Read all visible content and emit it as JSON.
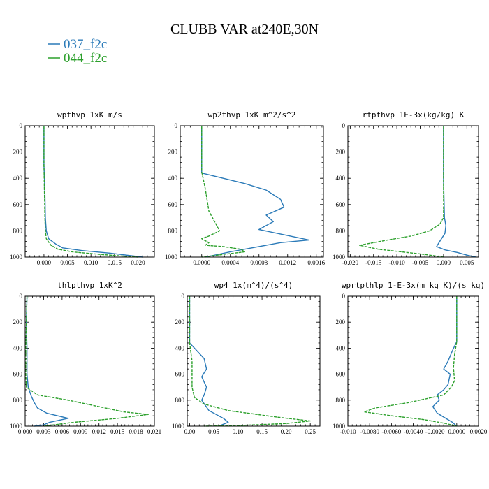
{
  "figure": {
    "title": "CLUBB VAR at240E,30N",
    "legend": [
      {
        "label": "037_f2c",
        "color": "#2a7ab8",
        "dash": "solid"
      },
      {
        "label": "044_f2c",
        "color": "#2ca02c",
        "dash": "dashed"
      }
    ]
  },
  "chart_data": [
    {
      "type": "line",
      "title": "wpthvp  1xK m/s",
      "xlim": [
        -0.004,
        0.0235
      ],
      "ylim": [
        1000,
        0
      ],
      "xticks": [
        0.0,
        0.005,
        0.01,
        0.015,
        0.02
      ],
      "xtick_labels": [
        "0.000",
        "0.005",
        "0.010",
        "0.015",
        "0.020"
      ],
      "yticks": [
        0,
        200,
        400,
        600,
        800,
        1000
      ],
      "ytick_labels": [
        "0",
        "200",
        "400",
        "600",
        "800",
        "1000"
      ],
      "series": [
        {
          "name": "037_f2c",
          "color": "#2a7ab8",
          "dash": "solid",
          "points": [
            [
              0.0,
              0
            ],
            [
              0.0,
              300
            ],
            [
              0.0002,
              500
            ],
            [
              0.0003,
              700
            ],
            [
              0.0005,
              800
            ],
            [
              0.001,
              860
            ],
            [
              0.0025,
              900
            ],
            [
              0.004,
              930
            ],
            [
              0.008,
              950
            ],
            [
              0.014,
              970
            ],
            [
              0.021,
              1000
            ]
          ]
        },
        {
          "name": "044_f2c",
          "color": "#2ca02c",
          "dash": "dashed",
          "points": [
            [
              0.0,
              0
            ],
            [
              0.0,
              300
            ],
            [
              0.0001,
              500
            ],
            [
              0.0002,
              700
            ],
            [
              0.0003,
              800
            ],
            [
              0.0005,
              860
            ],
            [
              0.0015,
              910
            ],
            [
              0.003,
              940
            ],
            [
              0.006,
              960
            ],
            [
              0.012,
              980
            ],
            [
              0.02,
              1000
            ]
          ]
        }
      ]
    },
    {
      "type": "line",
      "title": "wp2thvp  1xK m^2/s^2",
      "xlim": [
        -0.0003,
        0.0017
      ],
      "ylim": [
        1000,
        0
      ],
      "xticks": [
        0.0,
        0.0004,
        0.0008,
        0.0012,
        0.0016
      ],
      "xtick_labels": [
        "0.0000",
        "0.0004",
        "0.0008",
        "0.0012",
        "0.0016"
      ],
      "yticks": [
        0,
        200,
        400,
        600,
        800,
        1000
      ],
      "ytick_labels": [
        "0",
        "200",
        "400",
        "600",
        "800",
        "1000"
      ],
      "series": [
        {
          "name": "037_f2c",
          "color": "#2a7ab8",
          "dash": "solid",
          "points": [
            [
              0.0,
              0
            ],
            [
              0.0,
              360
            ],
            [
              0.0003,
              400
            ],
            [
              0.0006,
              440
            ],
            [
              0.0009,
              490
            ],
            [
              0.0011,
              560
            ],
            [
              0.00115,
              620
            ],
            [
              0.0009,
              680
            ],
            [
              0.001,
              730
            ],
            [
              0.0008,
              790
            ],
            [
              0.00115,
              830
            ],
            [
              0.0015,
              870
            ],
            [
              0.0011,
              890
            ],
            [
              0.0008,
              920
            ],
            [
              0.0004,
              960
            ],
            [
              5e-05,
              1000
            ]
          ]
        },
        {
          "name": "044_f2c",
          "color": "#2ca02c",
          "dash": "dashed",
          "points": [
            [
              0.0,
              0
            ],
            [
              0.0,
              350
            ],
            [
              5e-05,
              480
            ],
            [
              0.0001,
              650
            ],
            [
              0.00025,
              800
            ],
            [
              0.0001,
              840
            ],
            [
              0.0,
              860
            ],
            [
              0.0001,
              890
            ],
            [
              5e-05,
              910
            ],
            [
              0.0003,
              920
            ],
            [
              0.00055,
              940
            ],
            [
              0.0006,
              960
            ],
            [
              0.0003,
              980
            ],
            [
              0.0,
              1000
            ]
          ]
        }
      ]
    },
    {
      "type": "line",
      "title": "rtpthvp  1E-3x(kg/kg) K",
      "xlim": [
        -0.0205,
        0.0075
      ],
      "ylim": [
        1000,
        0
      ],
      "xticks": [
        -0.02,
        -0.015,
        -0.01,
        -0.005,
        0.0,
        0.005
      ],
      "xtick_labels": [
        "-0.020",
        "-0.015",
        "-0.010",
        "-0.005",
        "0.000",
        "0.005"
      ],
      "yticks": [
        0,
        200,
        400,
        600,
        800,
        1000
      ],
      "ytick_labels": [
        "0",
        "200",
        "400",
        "600",
        "800",
        "1000"
      ],
      "series": [
        {
          "name": "037_f2c",
          "color": "#2a7ab8",
          "dash": "solid",
          "points": [
            [
              0.0,
              0
            ],
            [
              0.0,
              400
            ],
            [
              0.0002,
              700
            ],
            [
              0.0005,
              760
            ],
            [
              0.0003,
              820
            ],
            [
              -0.0008,
              880
            ],
            [
              -0.0015,
              920
            ],
            [
              0.0003,
              945
            ],
            [
              0.003,
              965
            ],
            [
              0.005,
              985
            ],
            [
              0.007,
              1000
            ]
          ]
        },
        {
          "name": "044_f2c",
          "color": "#2ca02c",
          "dash": "dashed",
          "points": [
            [
              0.0,
              0
            ],
            [
              0.0,
              700
            ],
            [
              -0.0008,
              750
            ],
            [
              -0.003,
              800
            ],
            [
              -0.007,
              840
            ],
            [
              -0.012,
              870
            ],
            [
              -0.018,
              910
            ],
            [
              -0.014,
              940
            ],
            [
              -0.009,
              960
            ],
            [
              -0.004,
              980
            ],
            [
              0.0,
              1000
            ]
          ]
        }
      ]
    },
    {
      "type": "line",
      "title": "thlpthvp  1xK^2",
      "xlim": [
        0.0,
        0.021
      ],
      "ylim": [
        1000,
        0
      ],
      "xticks": [
        0.0,
        0.003,
        0.006,
        0.009,
        0.012,
        0.015,
        0.018,
        0.021
      ],
      "xtick_labels": [
        "0.000",
        "0.003",
        "0.006",
        "0.009",
        "0.012",
        "0.015",
        "0.018",
        "0.021"
      ],
      "yticks": [
        0,
        200,
        400,
        600,
        800,
        1000
      ],
      "ytick_labels": [
        "0",
        "200",
        "400",
        "600",
        "800",
        "1000"
      ],
      "series": [
        {
          "name": "037_f2c",
          "color": "#2a7ab8",
          "dash": "solid",
          "points": [
            [
              0.0003,
              0
            ],
            [
              0.0002,
              200
            ],
            [
              0.0003,
              400
            ],
            [
              0.0003,
              600
            ],
            [
              0.0005,
              700
            ],
            [
              0.001,
              770
            ],
            [
              0.0015,
              820
            ],
            [
              0.002,
              860
            ],
            [
              0.0035,
              900
            ],
            [
              0.007,
              940
            ],
            [
              0.004,
              970
            ],
            [
              0.003,
              990
            ],
            [
              0.0015,
              1000
            ]
          ]
        },
        {
          "name": "044_f2c",
          "color": "#2ca02c",
          "dash": "dashed",
          "points": [
            [
              0.0003,
              0
            ],
            [
              0.0002,
              200
            ],
            [
              0.0001,
              400
            ],
            [
              0.0001,
              600
            ],
            [
              0.0002,
              700
            ],
            [
              0.002,
              760
            ],
            [
              0.007,
              800
            ],
            [
              0.012,
              850
            ],
            [
              0.016,
              890
            ],
            [
              0.02,
              910
            ],
            [
              0.015,
              940
            ],
            [
              0.008,
              970
            ],
            [
              0.003,
              1000
            ]
          ]
        }
      ]
    },
    {
      "type": "line",
      "title": "wp4  1x(m^4)/(s^4)",
      "xlim": [
        -0.005,
        0.27
      ],
      "ylim": [
        1000,
        0
      ],
      "xticks": [
        0.0,
        0.05,
        0.1,
        0.15,
        0.2,
        0.25
      ],
      "xtick_labels": [
        "0.00",
        "0.05",
        "0.10",
        "0.15",
        "0.20",
        "0.25"
      ],
      "yticks": [
        0,
        200,
        400,
        600,
        800,
        1000
      ],
      "ytick_labels": [
        "0",
        "200",
        "400",
        "600",
        "800",
        "1000"
      ],
      "series": [
        {
          "name": "037_f2c",
          "color": "#2a7ab8",
          "dash": "solid",
          "points": [
            [
              0.0,
              0
            ],
            [
              0.0,
              360
            ],
            [
              0.01,
              400
            ],
            [
              0.03,
              480
            ],
            [
              0.035,
              560
            ],
            [
              0.025,
              620
            ],
            [
              0.035,
              700
            ],
            [
              0.03,
              760
            ],
            [
              0.025,
              800
            ],
            [
              0.04,
              880
            ],
            [
              0.07,
              940
            ],
            [
              0.08,
              970
            ],
            [
              0.06,
              1000
            ]
          ]
        },
        {
          "name": "044_f2c",
          "color": "#2ca02c",
          "dash": "dashed",
          "points": [
            [
              0.0,
              0
            ],
            [
              0.0,
              360
            ],
            [
              0.005,
              500
            ],
            [
              0.005,
              700
            ],
            [
              0.01,
              780
            ],
            [
              0.03,
              830
            ],
            [
              0.08,
              880
            ],
            [
              0.18,
              930
            ],
            [
              0.25,
              960
            ],
            [
              0.2,
              980
            ],
            [
              0.1,
              995
            ],
            [
              0.03,
              1000
            ]
          ]
        }
      ]
    },
    {
      "type": "line",
      "title": "wprtpthlp  1-E-3x(m kg K)/(s kg)",
      "xlim": [
        -0.01,
        0.002
      ],
      "ylim": [
        1000,
        0
      ],
      "xticks": [
        -0.01,
        -0.008,
        -0.006,
        -0.004,
        -0.002,
        0.0,
        0.002
      ],
      "xtick_labels": [
        "-0.010",
        "-0.0080",
        "-0.0060",
        "-0.0040",
        "-0.0020",
        "0.0000",
        "0.0020"
      ],
      "yticks": [
        0,
        200,
        400,
        600,
        800,
        1000
      ],
      "ytick_labels": [
        "0",
        "200",
        "400",
        "600",
        "800",
        "1000"
      ],
      "series": [
        {
          "name": "037_f2c",
          "color": "#2a7ab8",
          "dash": "solid",
          "points": [
            [
              0.0,
              0
            ],
            [
              0.0,
              350
            ],
            [
              -0.0004,
              420
            ],
            [
              -0.0008,
              500
            ],
            [
              -0.0012,
              560
            ],
            [
              -0.0006,
              600
            ],
            [
              -0.0008,
              680
            ],
            [
              -0.0012,
              720
            ],
            [
              -0.0018,
              760
            ],
            [
              -0.0016,
              800
            ],
            [
              -0.0022,
              850
            ],
            [
              -0.0018,
              900
            ],
            [
              -0.001,
              940
            ],
            [
              -0.0004,
              970
            ],
            [
              0.0,
              1000
            ]
          ]
        },
        {
          "name": "044_f2c",
          "color": "#2ca02c",
          "dash": "dashed",
          "points": [
            [
              0.0,
              0
            ],
            [
              0.0,
              350
            ],
            [
              -0.0002,
              450
            ],
            [
              -0.0003,
              550
            ],
            [
              -0.0002,
              650
            ],
            [
              -0.0005,
              700
            ],
            [
              -0.0012,
              760
            ],
            [
              -0.0045,
              820
            ],
            [
              -0.0075,
              860
            ],
            [
              -0.0085,
              890
            ],
            [
              -0.006,
              920
            ],
            [
              -0.003,
              950
            ],
            [
              -0.001,
              980
            ],
            [
              0.0,
              1000
            ]
          ]
        }
      ]
    }
  ]
}
